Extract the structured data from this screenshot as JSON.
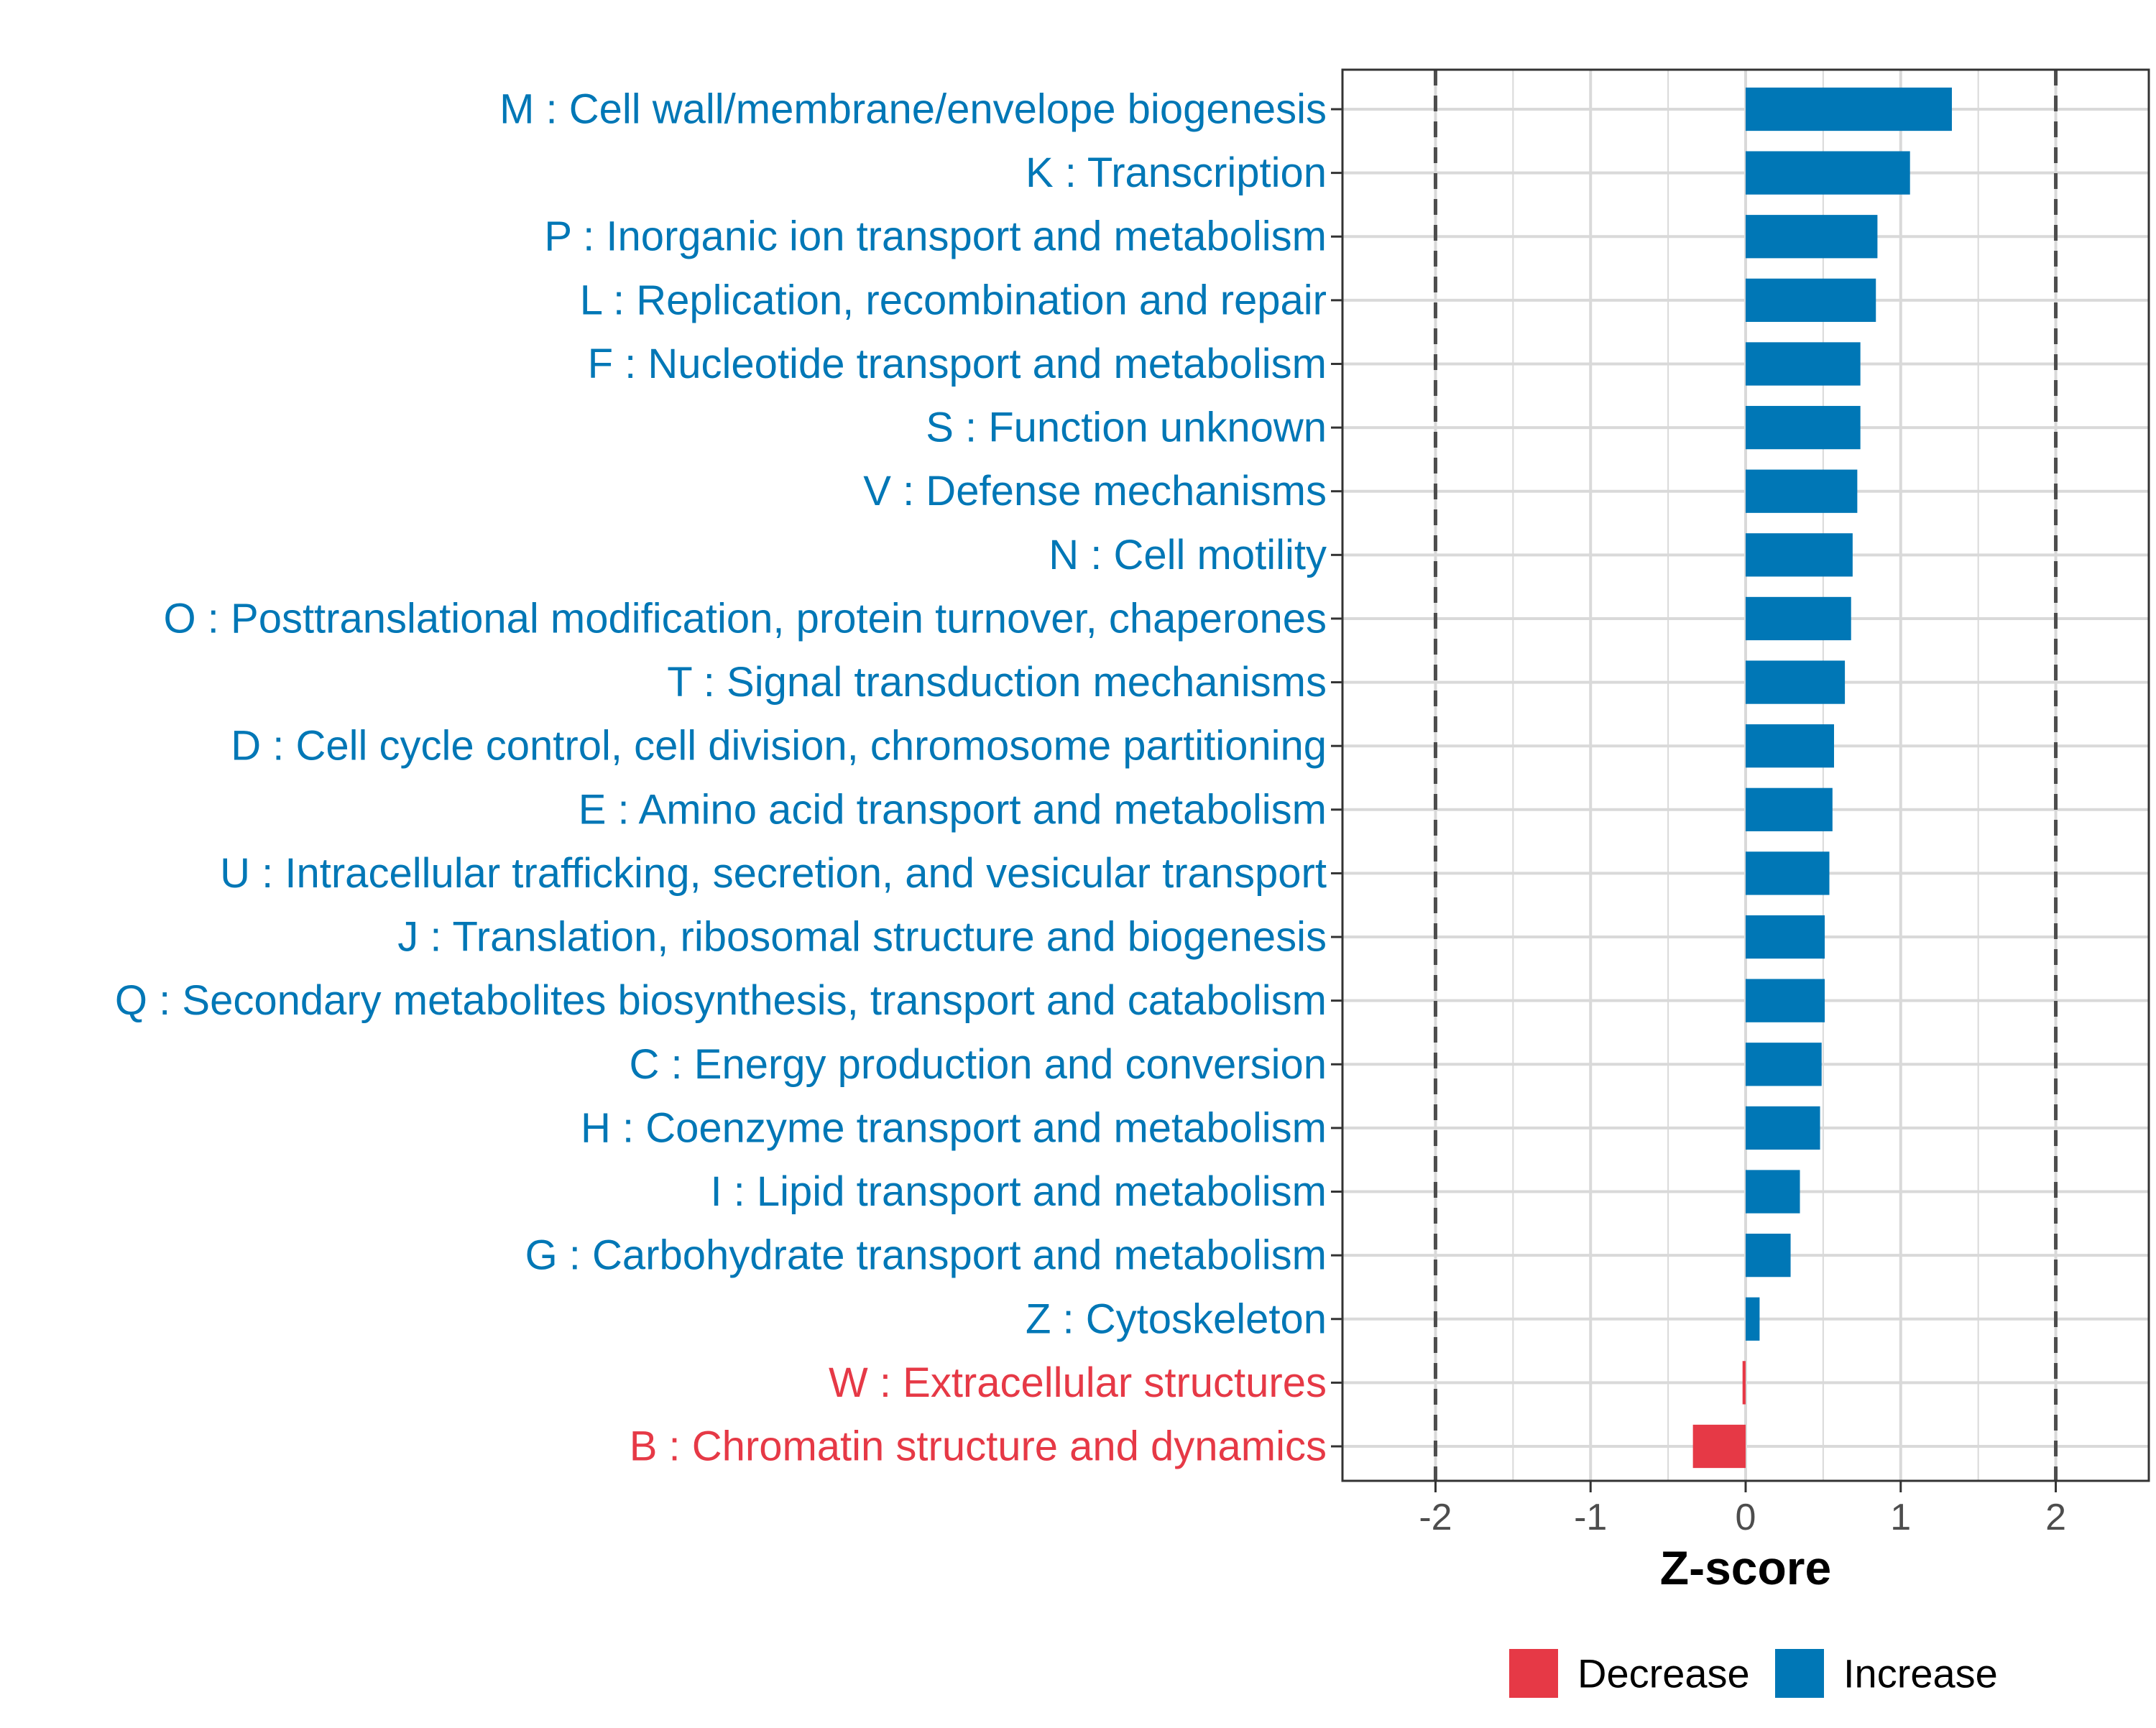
{
  "chart_data": {
    "type": "bar",
    "orientation": "horizontal",
    "title": "",
    "xlabel": "Z-score",
    "ylabel": "",
    "xlim": [
      -2.6,
      2.6
    ],
    "xticks": [
      -2,
      -1,
      0,
      1,
      2
    ],
    "xtick_labels": [
      "-2",
      "-1",
      "0",
      "1",
      "2"
    ],
    "reference_lines": [
      -2,
      2
    ],
    "grid": true,
    "categories": [
      "M : Cell wall/membrane/envelope biogenesis",
      "K : Transcription",
      "P : Inorganic ion transport and metabolism",
      "L : Replication, recombination and repair",
      "F : Nucleotide transport and metabolism",
      "S : Function unknown",
      "V : Defense mechanisms",
      "N : Cell motility",
      "O : Posttranslational modification, protein turnover, chaperones",
      "T : Signal transduction mechanisms",
      "D : Cell cycle control, cell division, chromosome partitioning",
      "E : Amino acid transport and metabolism",
      "U : Intracellular trafficking, secretion, and vesicular transport",
      "J : Translation, ribosomal structure and biogenesis",
      "Q : Secondary metabolites biosynthesis, transport and catabolism",
      "C : Energy production and conversion",
      "H : Coenzyme transport and metabolism",
      "I : Lipid transport and metabolism",
      "G : Carbohydrate transport and metabolism",
      "Z : Cytoskeleton",
      "W : Extracellular structures",
      "B : Chromatin structure and dynamics"
    ],
    "values": [
      1.33,
      1.06,
      0.85,
      0.84,
      0.74,
      0.74,
      0.72,
      0.69,
      0.68,
      0.64,
      0.57,
      0.56,
      0.54,
      0.51,
      0.51,
      0.49,
      0.48,
      0.35,
      0.29,
      0.09,
      -0.02,
      -0.34
    ],
    "direction": [
      "Increase",
      "Increase",
      "Increase",
      "Increase",
      "Increase",
      "Increase",
      "Increase",
      "Increase",
      "Increase",
      "Increase",
      "Increase",
      "Increase",
      "Increase",
      "Increase",
      "Increase",
      "Increase",
      "Increase",
      "Increase",
      "Increase",
      "Increase",
      "Decrease",
      "Decrease"
    ],
    "legend": {
      "position": "bottom",
      "entries": [
        {
          "name": "Decrease",
          "color": "#e63946"
        },
        {
          "name": "Increase",
          "color": "#0077b6"
        }
      ]
    },
    "colors": {
      "Increase": "#0077b6",
      "Decrease": "#e63946",
      "grid": "#d9d9d9",
      "reference_line": "#4d4d4d",
      "panel_border": "#333333"
    }
  }
}
